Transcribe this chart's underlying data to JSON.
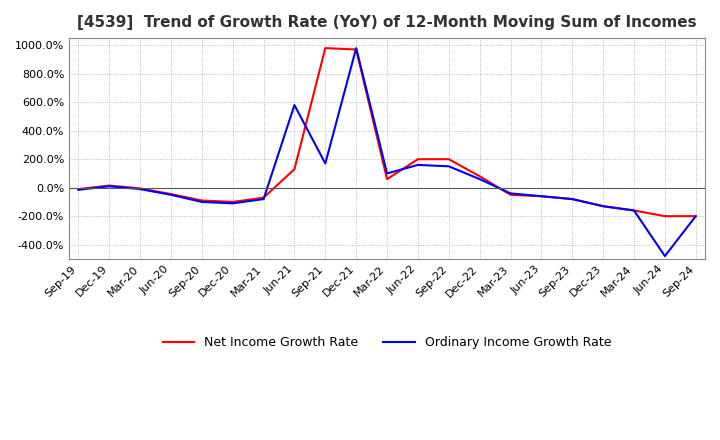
{
  "title": "[4539]  Trend of Growth Rate (YoY) of 12-Month Moving Sum of Incomes",
  "legend_labels": [
    "Ordinary Income Growth Rate",
    "Net Income Growth Rate"
  ],
  "line_colors": [
    "#0000ff",
    "#ff0000"
  ],
  "ylim": [
    -500,
    1050
  ],
  "yticks": [
    1000,
    800,
    600,
    400,
    200,
    0,
    -200,
    -400
  ],
  "x_labels": [
    "Sep-19",
    "Dec-19",
    "Mar-20",
    "Jun-20",
    "Sep-20",
    "Dec-20",
    "Mar-21",
    "Jun-21",
    "Sep-21",
    "Dec-21",
    "Mar-22",
    "Jun-22",
    "Sep-22",
    "Dec-22",
    "Mar-23",
    "Jun-23",
    "Sep-23",
    "Dec-23",
    "Mar-24",
    "Jun-24",
    "Sep-24"
  ],
  "ordinary_income": [
    -15,
    10,
    -10,
    -50,
    -100,
    -110,
    -80,
    580,
    170,
    980,
    100,
    160,
    150,
    60,
    -40,
    -60,
    -80,
    -130,
    -160,
    -480,
    -200
  ],
  "net_income": [
    -10,
    15,
    -5,
    -45,
    -90,
    -100,
    -70,
    130,
    980,
    970,
    60,
    200,
    200,
    80,
    -50,
    -60,
    -80,
    -130,
    -160,
    -200,
    -200
  ],
  "background_color": "#ffffff",
  "grid_color": "#aaaaaa",
  "border_color": "#888888"
}
